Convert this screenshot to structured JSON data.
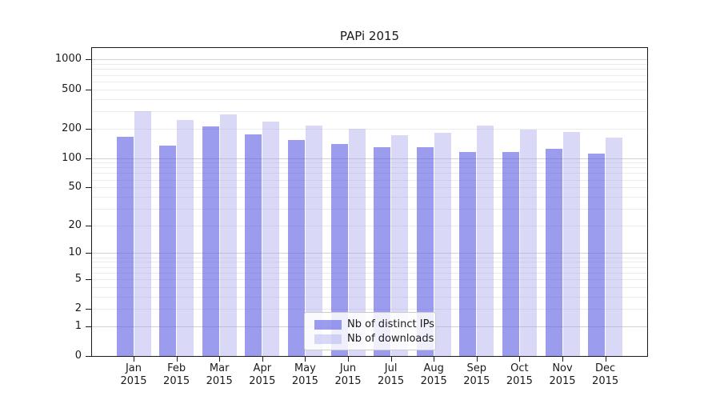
{
  "chart_data": {
    "type": "bar",
    "title": "PAPi 2015",
    "categories": [
      "Jan 2015",
      "Feb 2015",
      "Mar 2015",
      "Apr 2015",
      "May 2015",
      "Jun 2015",
      "Jul 2015",
      "Aug 2015",
      "Sep 2015",
      "Oct 2015",
      "Nov 2015",
      "Dec 2015"
    ],
    "series": [
      {
        "name": "Nb of distinct IPs",
        "color": "#5a5ae4",
        "alpha": 0.6,
        "values": [
          164,
          134,
          210,
          173,
          152,
          138,
          128,
          130,
          115,
          115,
          124,
          110
        ]
      },
      {
        "name": "Nb of downloads",
        "color": "#a0a0eb",
        "alpha": 0.4,
        "values": [
          302,
          244,
          277,
          237,
          212,
          200,
          172,
          181,
          213,
          195,
          184,
          162
        ]
      }
    ],
    "xlabel": "",
    "ylabel": "",
    "yscale": "log1p",
    "ylim": [
      0,
      1300
    ],
    "yticks": [
      0,
      1,
      2,
      5,
      10,
      20,
      50,
      100,
      200,
      500,
      1000
    ],
    "grid": {
      "on": true,
      "minor_color": "#ebebeb",
      "major_color": "#d2d2d2",
      "major_values": [
        1,
        10,
        100,
        1000
      ]
    },
    "legend": {
      "position": "lower center"
    }
  }
}
